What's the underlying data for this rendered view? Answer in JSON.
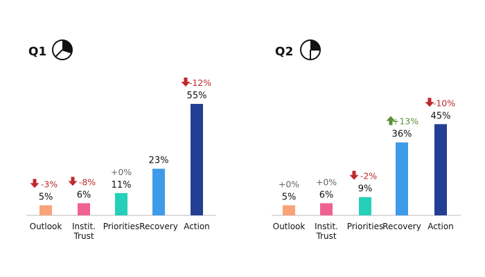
{
  "chart_data": [
    {
      "type": "bar",
      "title": "Q1",
      "icon": "pie-chart-icon",
      "categories": [
        "Outlook",
        "Instit.\nTrust",
        "Priorities",
        "Recovery",
        "Action"
      ],
      "values": [
        5,
        6,
        11,
        23,
        55
      ],
      "value_labels": [
        "5%",
        "6%",
        "11%",
        "23%",
        "55%"
      ],
      "changes": [
        {
          "text": "-3%",
          "dir": "down"
        },
        {
          "text": "-8%",
          "dir": "down"
        },
        {
          "text": "+0%",
          "dir": "none"
        },
        {
          "text": "",
          "dir": "none"
        },
        {
          "text": "-12%",
          "dir": "down"
        }
      ],
      "colors": [
        "#f9a37a",
        "#f06292",
        "#26d0b8",
        "#3d9be9",
        "#233f93"
      ],
      "ylim": [
        0,
        55
      ]
    },
    {
      "type": "bar",
      "title": "Q2",
      "icon": "pie-chart-icon",
      "categories": [
        "Outlook",
        "Instit.\nTrust",
        "Priorities",
        "Recovery",
        "Action"
      ],
      "values": [
        5,
        6,
        9,
        36,
        45
      ],
      "value_labels": [
        "5%",
        "6%",
        "9%",
        "36%",
        "45%"
      ],
      "changes": [
        {
          "text": "+0%",
          "dir": "none"
        },
        {
          "text": "+0%",
          "dir": "none"
        },
        {
          "text": "-2%",
          "dir": "down"
        },
        {
          "text": "+13%",
          "dir": "up"
        },
        {
          "text": "-10%",
          "dir": "down"
        }
      ],
      "colors": [
        "#f9a37a",
        "#f06292",
        "#26d0b8",
        "#3d9be9",
        "#233f93"
      ],
      "ylim": [
        0,
        55
      ]
    }
  ],
  "colors": {
    "down": "#c0282d",
    "up": "#5a8f3a",
    "neutral": "#666666",
    "axis": "#bbbbbb"
  }
}
